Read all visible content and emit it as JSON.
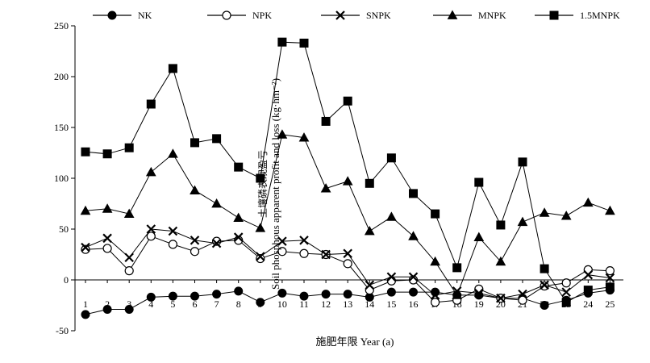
{
  "chart_data": {
    "type": "line",
    "xlabel": "施肥年限 Year (a)",
    "ylabel_cn": "土壤磷表观盈亏",
    "ylabel_en": "Soil phosphous apparent profit and loss (kg·hm⁻²)",
    "x": [
      1,
      2,
      3,
      4,
      5,
      6,
      7,
      8,
      9,
      10,
      11,
      12,
      13,
      14,
      15,
      16,
      17,
      18,
      19,
      20,
      21,
      22,
      23,
      24,
      25
    ],
    "ylim": [
      -50,
      250
    ],
    "yticks": [
      -50,
      0,
      50,
      100,
      150,
      200,
      250
    ],
    "legend_position": "top",
    "grid": false,
    "series": [
      {
        "name": "NK",
        "marker": "filled-circle",
        "values": [
          -34,
          -29,
          -29,
          -17,
          -16,
          -16,
          -14,
          -11,
          -22,
          -13,
          -16,
          -14,
          -14,
          -17,
          -12,
          -12,
          -12,
          -15,
          -15,
          -18,
          -18,
          -25,
          -20,
          -13,
          -10
        ]
      },
      {
        "name": "NPK",
        "marker": "open-circle",
        "values": [
          30,
          31,
          9,
          43,
          35,
          28,
          38,
          39,
          21,
          28,
          26,
          25,
          16,
          -10,
          -1,
          0,
          -22,
          -20,
          -9,
          -18,
          -20,
          -6,
          -3,
          10,
          9
        ]
      },
      {
        "name": "SNPK",
        "marker": "cross",
        "values": [
          32,
          41,
          22,
          50,
          48,
          39,
          36,
          42,
          23,
          38,
          39,
          25,
          26,
          -5,
          3,
          3,
          -15,
          -11,
          -13,
          -18,
          -14,
          -5,
          -12,
          5,
          2
        ]
      },
      {
        "name": "MNPK",
        "marker": "filled-triangle",
        "values": [
          68,
          70,
          65,
          106,
          124,
          88,
          75,
          61,
          51,
          143,
          140,
          90,
          97,
          48,
          62,
          43,
          18,
          -15,
          42,
          18,
          57,
          66,
          63,
          76,
          68
        ]
      },
      {
        "name": "1.5MNPK",
        "marker": "filled-square",
        "values": [
          126,
          124,
          130,
          173,
          208,
          135,
          139,
          111,
          100,
          234,
          233,
          156,
          176,
          95,
          120,
          85,
          65,
          12,
          96,
          54,
          116,
          11,
          -22,
          -10,
          -7
        ]
      }
    ]
  }
}
